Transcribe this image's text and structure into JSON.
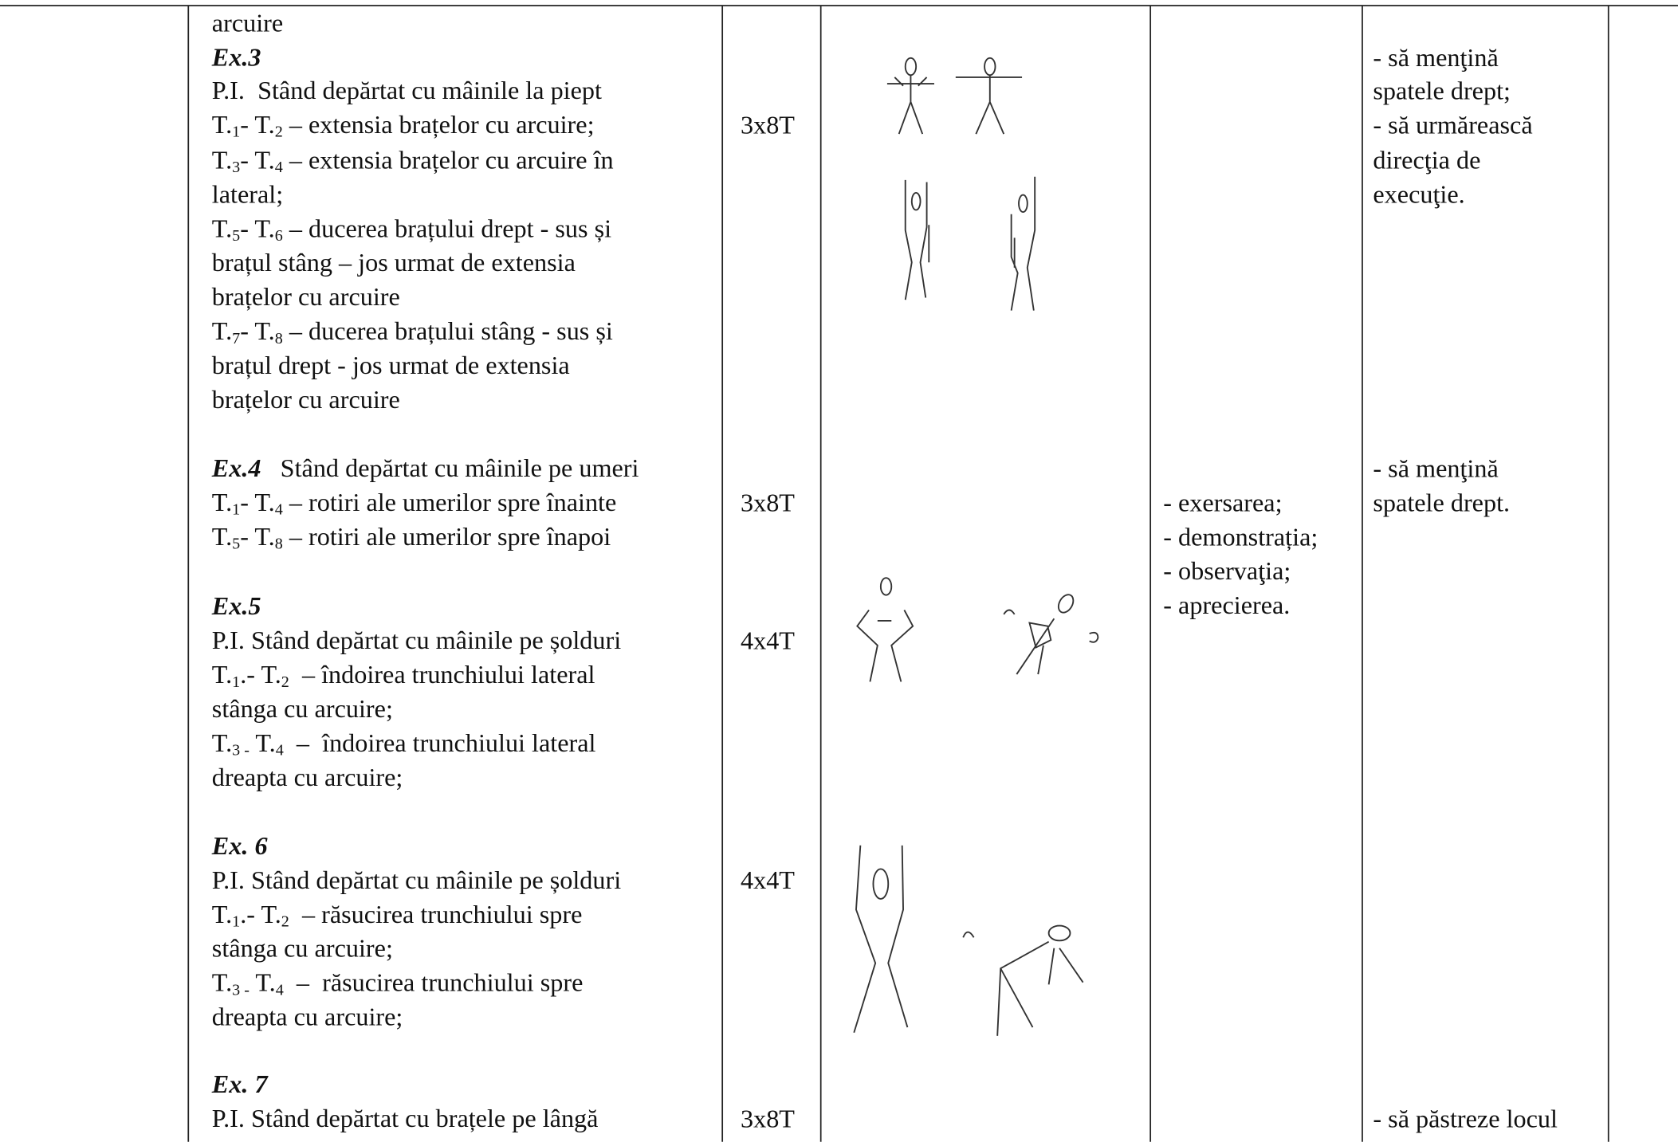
{
  "left": [
    [
      {
        "t": "arcuire"
      }
    ],
    [
      {
        "b": "Ex.3"
      }
    ],
    [
      {
        "t": "P.I.  Stând depărtat cu mâinile la piept"
      }
    ],
    [
      {
        "t": "T."
      },
      {
        "sub": "1"
      },
      {
        "t": "- T."
      },
      {
        "sub": "2"
      },
      {
        "t": " – extensia brațelor cu arcuire;"
      }
    ],
    [
      {
        "t": "T."
      },
      {
        "sub": "3"
      },
      {
        "t": "- T."
      },
      {
        "sub": "4"
      },
      {
        "t": " – extensia brațelor cu arcuire în"
      }
    ],
    [
      {
        "t": "lateral;"
      }
    ],
    [
      {
        "t": "T."
      },
      {
        "sub": "5"
      },
      {
        "t": "- T."
      },
      {
        "sub": "6"
      },
      {
        "t": " – ducerea brațului drept - sus și"
      }
    ],
    [
      {
        "t": "brațul stâng – jos urmat de extensia"
      }
    ],
    [
      {
        "t": "brațelor cu arcuire"
      }
    ],
    [
      {
        "t": "T."
      },
      {
        "sub": "7"
      },
      {
        "t": "- T."
      },
      {
        "sub": "8"
      },
      {
        "t": " – ducerea brațului stâng - sus și"
      }
    ],
    [
      {
        "t": "brațul drept - jos urmat de extensia"
      }
    ],
    [
      {
        "t": "brațelor cu arcuire"
      }
    ],
    [
      {
        "b": "Ex.4"
      },
      {
        "t": "   Stând depărtat cu mâinile pe umeri"
      }
    ],
    [
      {
        "t": "T."
      },
      {
        "sub": "1"
      },
      {
        "t": "- T."
      },
      {
        "sub": "4"
      },
      {
        "t": " – rotiri ale umerilor spre înainte"
      }
    ],
    [
      {
        "t": "T."
      },
      {
        "sub": "5"
      },
      {
        "t": "- T."
      },
      {
        "sub": "8"
      },
      {
        "t": " – rotiri ale umerilor spre înapoi"
      }
    ],
    [
      {
        "b": "Ex.5"
      }
    ],
    [
      {
        "t": "P.I. Stând depărtat cu mâinile pe șolduri"
      }
    ],
    [
      {
        "t": "T."
      },
      {
        "sub": "1"
      },
      {
        "t": ".- T."
      },
      {
        "sub": "2"
      },
      {
        "t": "  – îndoirea trunchiului lateral"
      }
    ],
    [
      {
        "t": "stânga cu arcuire;"
      }
    ],
    [
      {
        "t": "T."
      },
      {
        "sub": "3 -"
      },
      {
        "t": " T."
      },
      {
        "sub": "4"
      },
      {
        "t": "  –  îndoirea trunchiului lateral"
      }
    ],
    [
      {
        "t": "dreapta cu arcuire;"
      }
    ],
    [
      {
        "b": "Ex. 6"
      }
    ],
    [
      {
        "t": "P.I. Stând depărtat cu mâinile pe șolduri"
      }
    ],
    [
      {
        "t": "T."
      },
      {
        "sub": "1"
      },
      {
        "t": ".- T."
      },
      {
        "sub": "2"
      },
      {
        "t": "  – răsucirea trunchiului spre"
      }
    ],
    [
      {
        "t": "stânga cu arcuire;"
      }
    ],
    [
      {
        "t": "T."
      },
      {
        "sub": "3 -"
      },
      {
        "t": " T."
      },
      {
        "sub": "4"
      },
      {
        "t": "  –  răsucirea trunchiului spre"
      }
    ],
    [
      {
        "t": "dreapta cu arcuire;"
      }
    ],
    [
      {
        "b": "Ex. 7"
      }
    ],
    [
      {
        "t": "P.I. Stând depărtat cu brațele pe lângă"
      }
    ]
  ],
  "dose": [
    "3x8T",
    "3x8T",
    "4x4T",
    "4x4T",
    "3x8T"
  ],
  "methods": [
    "- exersarea;",
    "- demonstrația;",
    "- observaţia;",
    "- aprecierea."
  ],
  "notes": [
    "- să menţină",
    "spatele drept;",
    "- să urmărească",
    "direcţia de",
    "execuţie.",
    "- să menţină",
    "spatele drept.",
    "- să păstreze locul"
  ]
}
